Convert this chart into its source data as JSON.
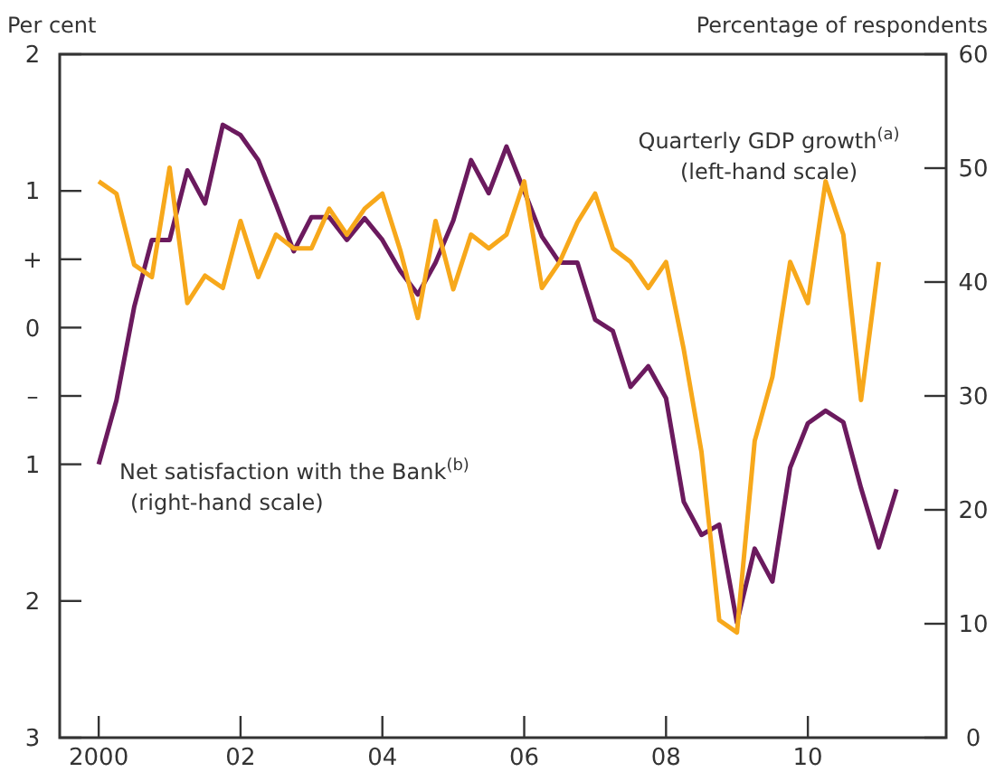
{
  "chart_data": {
    "type": "line",
    "ylabel": "Per cent",
    "y2label": "Percentage of respondents",
    "xlim": [
      1999.45,
      2011.95
    ],
    "xticks": [
      {
        "value": 2000,
        "label": "2000"
      },
      {
        "value": 2002,
        "label": "02"
      },
      {
        "value": 2004,
        "label": "04"
      },
      {
        "value": 2006,
        "label": "06"
      },
      {
        "value": 2008,
        "label": "08"
      },
      {
        "value": 2010,
        "label": "10"
      }
    ],
    "ylim": [
      -3,
      2
    ],
    "yticks": [
      2,
      1,
      {
        "value": 0.5,
        "label": "+"
      },
      0,
      {
        "value": -0.5,
        "label": "–"
      },
      {
        "value": -1,
        "label": "1"
      },
      {
        "value": -2,
        "label": "2"
      },
      {
        "value": -3,
        "label": "3"
      }
    ],
    "y2lim": [
      0,
      60
    ],
    "y2ticks": [
      0,
      10,
      20,
      30,
      40,
      50,
      60
    ],
    "marker": "none",
    "series": [
      {
        "name": "Net satisfaction with the Bank$^{(b)}$\n(right-hand scale)",
        "color": "#6b1a5e",
        "axis": "y2",
        "x": [
          2000,
          2000.25,
          2000.5,
          2000.75,
          2001,
          2001.25,
          2001.5,
          2001.75,
          2002,
          2002.25,
          2002.5,
          2002.75,
          2003,
          2003.25,
          2003.5,
          2003.75,
          2004,
          2004.25,
          2004.5,
          2004.75,
          2005,
          2005.25,
          2005.5,
          2005.75,
          2006,
          2006.25,
          2006.5,
          2006.75,
          2007,
          2007.25,
          2007.5,
          2007.75,
          2008,
          2008.25,
          2008.5,
          2008.75,
          2009,
          2009.25,
          2009.5,
          2009.75,
          2010,
          2010.25,
          2010.5,
          2010.75,
          2011,
          2011.25
        ],
        "values": [
          24,
          29.6,
          37.8,
          43.7,
          43.7,
          49.8,
          46.9,
          53.8,
          52.9,
          50.7,
          46.8,
          42.7,
          45.7,
          45.7,
          43.7,
          45.6,
          43.7,
          41,
          38.9,
          41.7,
          45.4,
          50.7,
          47.8,
          51.9,
          48,
          44,
          41.7,
          41.7,
          36.7,
          35.7,
          30.8,
          32.6,
          29.8,
          20.7,
          17.8,
          18.7,
          10.1,
          16.6,
          13.7,
          23.7,
          27.6,
          28.7,
          27.7,
          21.9,
          16.7,
          21.8
        ]
      },
      {
        "name": "Quarterly GDP growth$^{(a)}$\n(left-hand scale)",
        "color": "#f7a81b",
        "axis": "y",
        "x": [
          2000,
          2000.25,
          2000.5,
          2000.75,
          2001,
          2001.25,
          2001.5,
          2001.75,
          2002,
          2002.25,
          2002.5,
          2002.75,
          2003,
          2003.25,
          2003.5,
          2003.75,
          2004,
          2004.25,
          2004.5,
          2004.75,
          2005,
          2005.25,
          2005.5,
          2005.75,
          2006,
          2006.25,
          2006.5,
          2006.75,
          2007,
          2007.25,
          2007.5,
          2007.75,
          2008,
          2008.25,
          2008.5,
          2008.75,
          2009,
          2009.25,
          2009.5,
          2009.75,
          2010,
          2010.25,
          2010.5,
          2010.75,
          2011
        ],
        "values": [
          1.07,
          0.98,
          0.46,
          0.37,
          1.17,
          0.18,
          0.38,
          0.29,
          0.78,
          0.37,
          0.68,
          0.58,
          0.58,
          0.87,
          0.68,
          0.87,
          0.98,
          0.57,
          0.07,
          0.78,
          0.28,
          0.68,
          0.58,
          0.68,
          1.07,
          0.29,
          0.48,
          0.77,
          0.98,
          0.58,
          0.48,
          0.29,
          0.48,
          -0.16,
          -0.91,
          -2.14,
          -2.23,
          -0.83,
          -0.36,
          0.48,
          0.18,
          1.07,
          0.68,
          -0.53,
          0.48
        ]
      }
    ]
  }
}
